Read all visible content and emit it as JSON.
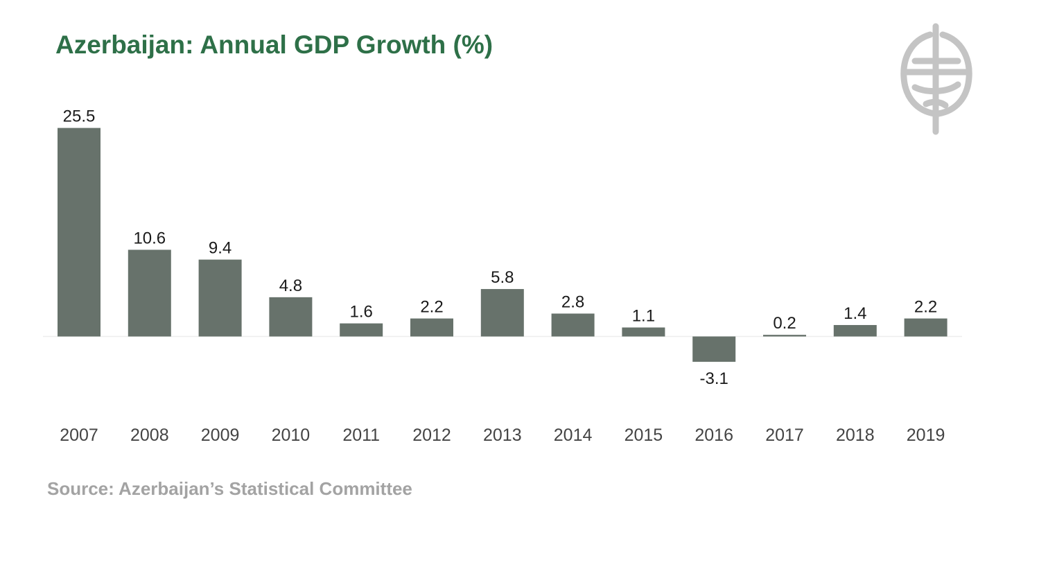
{
  "title": "Azerbaijan: Annual GDP Growth (%)",
  "source": "Source: Azerbaijan’s Statistical Committee",
  "colors": {
    "title": "#2e7048",
    "bar": "#67726b",
    "source": "#a3a3a3",
    "baseline": "#eeeeee",
    "logo": "#c4c4c4"
  },
  "logo": {
    "icon": "emblem-icon"
  },
  "chart_data": {
    "type": "bar",
    "title": "Azerbaijan: Annual GDP Growth (%)",
    "categories": [
      "2007",
      "2008",
      "2009",
      "2010",
      "2011",
      "2012",
      "2013",
      "2014",
      "2015",
      "2016",
      "2017",
      "2018",
      "2019"
    ],
    "values": [
      25.5,
      10.6,
      9.4,
      4.8,
      1.6,
      2.2,
      5.8,
      2.8,
      1.1,
      -3.1,
      0.2,
      1.4,
      2.2
    ],
    "value_labels": [
      "25.5",
      "10.6",
      "9.4",
      "4.8",
      "1.6",
      "2.2",
      "5.8",
      "2.8",
      "1.1",
      "-3.1",
      "0.2",
      "1.4",
      "2.2"
    ],
    "xlabel": "",
    "ylabel": "",
    "ylim": [
      -3.1,
      25.5
    ],
    "grid": false,
    "legend": "none",
    "data_labels": true
  }
}
